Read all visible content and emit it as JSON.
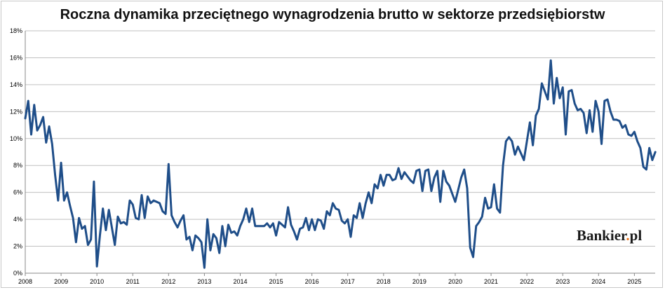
{
  "title": "Roczna dynamika przeciętnego wynagrodzenia brutto w sektorze przedsiębiorstw",
  "logo": {
    "name": "Bankier",
    "dot": ".",
    "suffix": "pl",
    "dot_color": "#e8731c"
  },
  "colors": {
    "line": "#1f4e89",
    "grid": "#c0c0c0",
    "axis": "#888888"
  },
  "chart_data": {
    "type": "line",
    "title": "Roczna dynamika przeciętnego wynagrodzenia brutto w sektorze przedsiębiorstw",
    "xlabel": "",
    "ylabel": "",
    "x_range": [
      2008,
      2025.58
    ],
    "ylim": [
      0,
      18
    ],
    "y_ticks": [
      "0%",
      "2%",
      "4%",
      "6%",
      "8%",
      "10%",
      "12%",
      "14%",
      "16%",
      "18%"
    ],
    "x_ticks": [
      "2008",
      "2009",
      "2010",
      "2011",
      "2012",
      "2013",
      "2014",
      "2015",
      "2016",
      "2017",
      "2018",
      "2019",
      "2020",
      "2021",
      "2022",
      "2023",
      "2024",
      "2025"
    ],
    "grid": true,
    "legend": "none",
    "series": [
      {
        "start": "2008-01",
        "frequency": "monthly",
        "values": [
          11.5,
          12.8,
          10.3,
          12.5,
          10.6,
          11.0,
          11.6,
          9.7,
          10.9,
          9.6,
          7.3,
          5.4,
          8.2,
          5.4,
          6.0,
          5.0,
          4.1,
          2.3,
          4.1,
          3.3,
          3.5,
          2.1,
          2.5,
          6.8,
          0.5,
          2.8,
          4.8,
          3.2,
          4.7,
          3.4,
          2.1,
          4.2,
          3.7,
          3.8,
          3.6,
          5.4,
          5.1,
          4.1,
          4.0,
          5.8,
          4.1,
          5.7,
          5.2,
          5.4,
          5.3,
          5.2,
          4.6,
          4.4,
          8.1,
          4.3,
          3.8,
          3.4,
          3.9,
          4.3,
          2.5,
          2.7,
          1.7,
          2.8,
          2.6,
          2.3,
          0.4,
          4.0,
          1.7,
          2.9,
          2.6,
          1.5,
          3.5,
          2.0,
          3.6,
          3.0,
          3.1,
          2.8,
          3.5,
          4.0,
          4.8,
          3.8,
          4.8,
          3.5,
          3.5,
          3.5,
          3.5,
          3.7,
          3.4,
          3.7,
          2.8,
          3.8,
          3.6,
          3.4,
          4.9,
          3.6,
          3.1,
          2.5,
          3.3,
          3.4,
          4.1,
          3.2,
          4.0,
          3.2,
          4.0,
          3.9,
          3.3,
          4.6,
          4.3,
          5.2,
          4.8,
          4.7,
          3.9,
          3.7,
          4.0,
          2.7,
          4.3,
          4.1,
          5.2,
          4.1,
          5.2,
          6.0,
          5.2,
          6.6,
          6.3,
          7.3,
          6.5,
          7.3,
          7.3,
          6.9,
          7.0,
          7.8,
          7.0,
          7.5,
          7.2,
          6.9,
          6.7,
          7.6,
          7.7,
          6.1,
          7.6,
          7.7,
          6.1,
          7.1,
          7.6,
          5.3,
          7.6,
          6.8,
          6.5,
          5.9,
          5.3,
          6.2,
          7.1,
          7.7,
          6.3,
          1.9,
          1.2,
          3.5,
          3.8,
          4.2,
          5.6,
          4.8,
          4.9,
          6.6,
          4.8,
          4.5,
          8.0,
          9.8,
          10.1,
          9.8,
          8.8,
          9.4,
          8.9,
          8.4,
          9.8,
          11.2,
          9.5,
          11.7,
          12.2,
          14.1,
          13.5,
          12.9,
          15.8,
          12.6,
          14.5,
          13.0,
          13.8,
          10.3,
          13.5,
          13.6,
          12.6,
          12.1,
          12.2,
          11.9,
          10.4,
          12.1,
          10.5,
          12.8,
          12.0,
          9.6,
          12.8,
          12.9,
          12.0,
          11.4,
          11.4,
          11.3,
          10.8,
          11.0,
          10.3,
          10.2,
          10.5,
          9.8,
          9.3,
          7.9,
          7.7,
          9.3,
          8.4,
          9.0
        ]
      }
    ]
  }
}
